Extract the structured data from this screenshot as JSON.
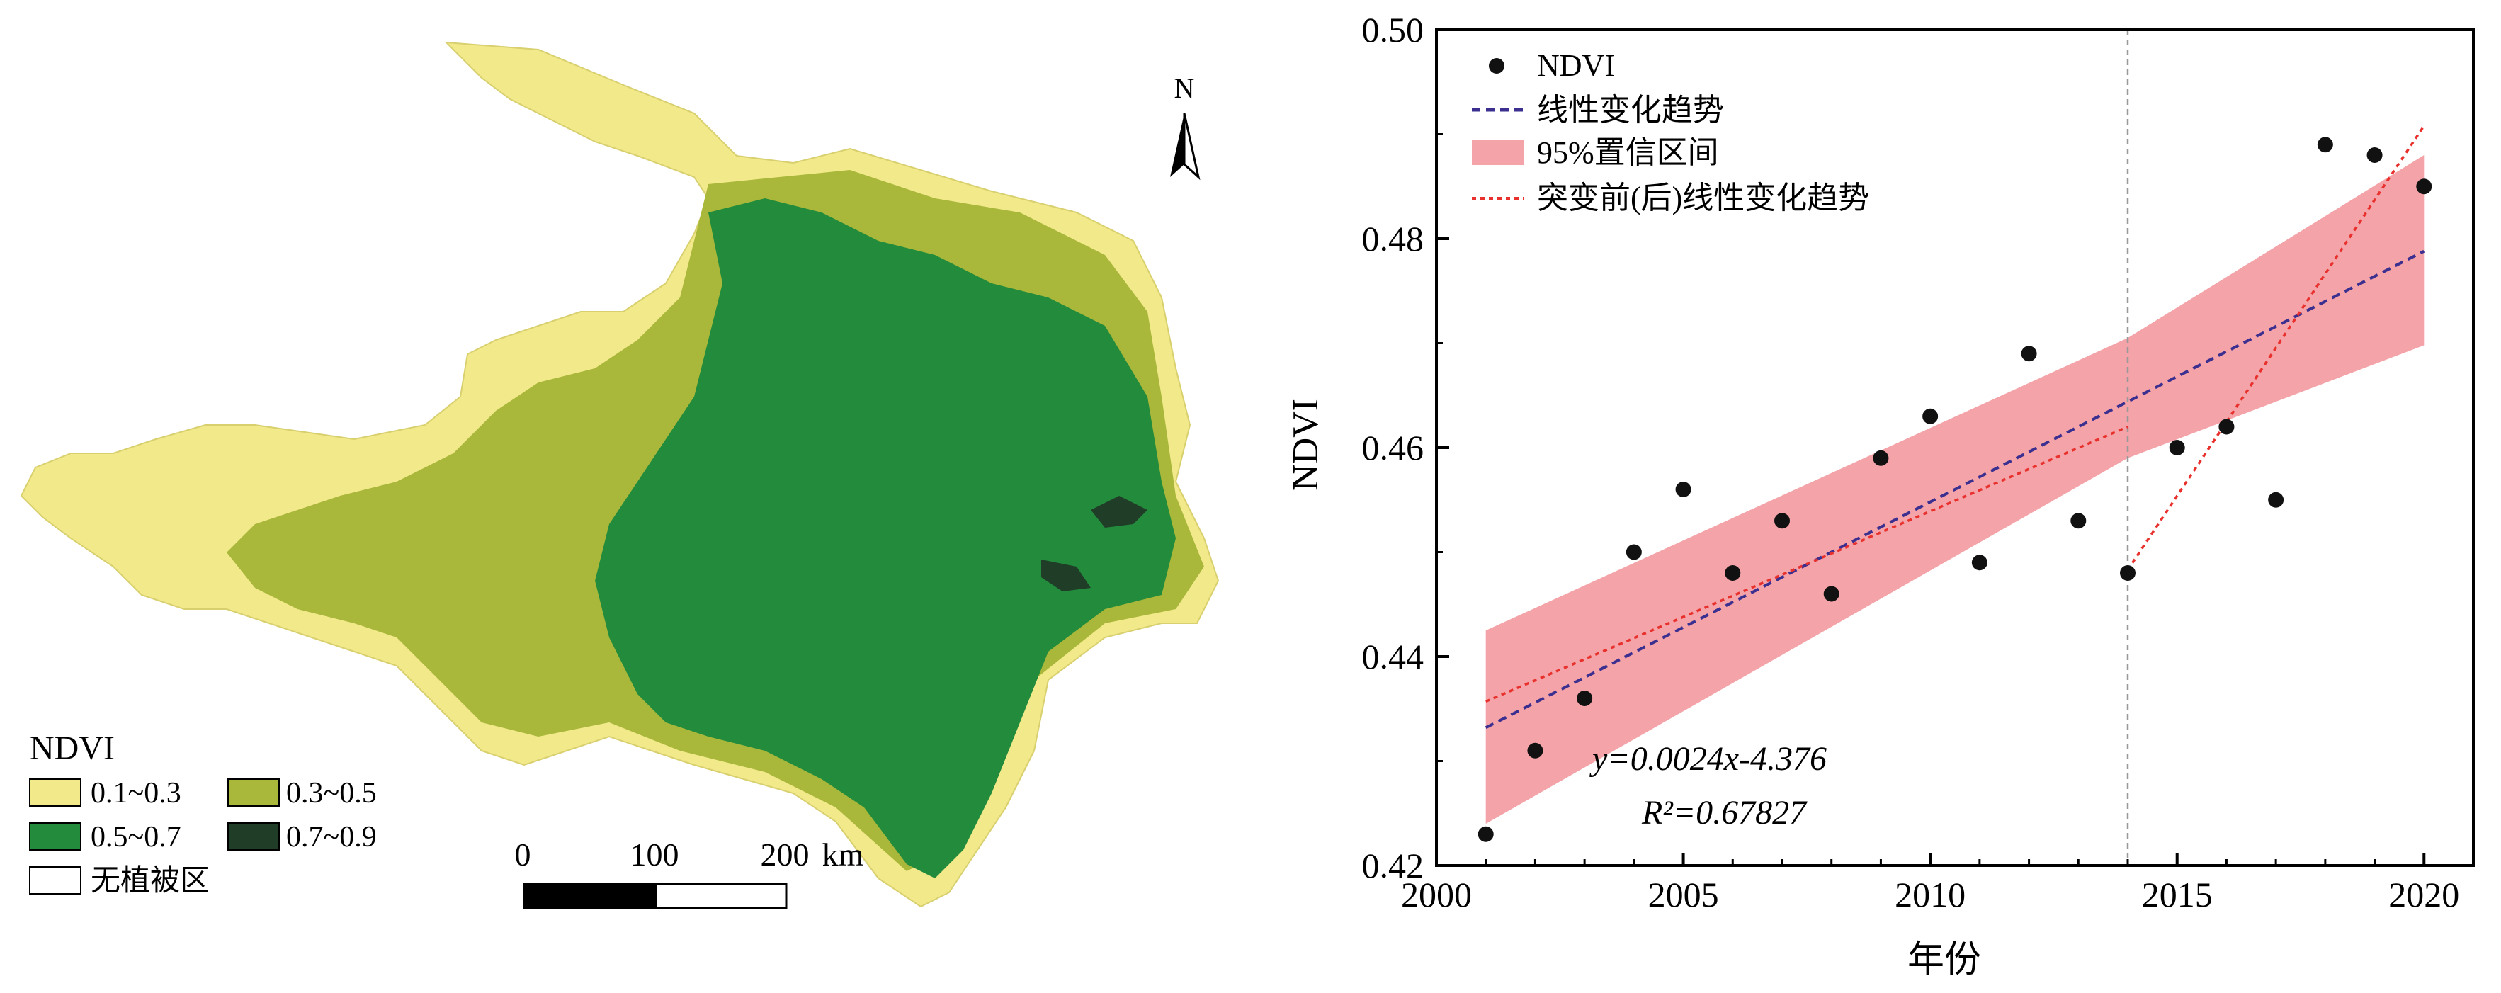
{
  "map": {
    "legend": {
      "title": "NDVI",
      "items": [
        {
          "label": "0.1~0.3",
          "color": "#f2e98a"
        },
        {
          "label": "0.3~0.5",
          "color": "#a9b83a"
        },
        {
          "label": "0.5~0.7",
          "color": "#238b3c"
        },
        {
          "label": "0.7~0.9",
          "color": "#1f3d27"
        },
        {
          "label": "无植被区",
          "color": "#ffffff"
        }
      ]
    },
    "north_label": "N",
    "scale": {
      "ticks": [
        "0",
        "100",
        "200"
      ],
      "unit": "km"
    }
  },
  "chart_data": {
    "type": "scatter",
    "xlabel": "年份",
    "ylabel": "NDVI",
    "xlim": [
      2000,
      2021
    ],
    "ylim": [
      0.42,
      0.5
    ],
    "xticks": [
      2000,
      2005,
      2010,
      2015,
      2020
    ],
    "yticks": [
      0.42,
      0.44,
      0.46,
      0.48,
      0.5
    ],
    "ytick_labels": [
      "0.42",
      "0.44",
      "0.46",
      "0.48",
      "0.50"
    ],
    "grid": false,
    "legend_position": "top-left",
    "legend": [
      "NDVI",
      "线性变化趋势",
      "95%置信区间",
      "突变前(后)线性变化趋势"
    ],
    "series": [
      {
        "name": "NDVI",
        "x": [
          2001,
          2002,
          2003,
          2004,
          2005,
          2006,
          2007,
          2008,
          2009,
          2010,
          2011,
          2012,
          2013,
          2014,
          2015,
          2016,
          2017,
          2018,
          2019,
          2020
        ],
        "y": [
          0.423,
          0.431,
          0.436,
          0.45,
          0.456,
          0.448,
          0.453,
          0.446,
          0.459,
          0.463,
          0.449,
          0.469,
          0.453,
          0.448,
          0.46,
          0.462,
          0.455,
          0.489,
          0.488,
          0.485
        ]
      }
    ],
    "trend_line": {
      "x": [
        2001,
        2020
      ],
      "y": [
        0.4332,
        0.4788
      ]
    },
    "confidence_band": {
      "x": [
        2001,
        2014,
        2020
      ],
      "upper": [
        0.4425,
        0.4705,
        0.488
      ],
      "lower": [
        0.424,
        0.459,
        0.4698
      ]
    },
    "breakpoint_x": 2014,
    "segment_trends": [
      {
        "x": [
          2001,
          2014
        ],
        "y": [
          0.4357,
          0.462
        ]
      },
      {
        "x": [
          2014,
          2020
        ],
        "y": [
          0.4483,
          0.4908
        ]
      }
    ],
    "annotations": {
      "equation": "y=0.0024x-4.376",
      "r_squared": "R²=0.67827"
    },
    "colors": {
      "points": "#111111",
      "trend": "#3b2f8f",
      "band": "#f4a3a8",
      "segments": "#e8312d",
      "breakpoint": "#999999"
    }
  }
}
